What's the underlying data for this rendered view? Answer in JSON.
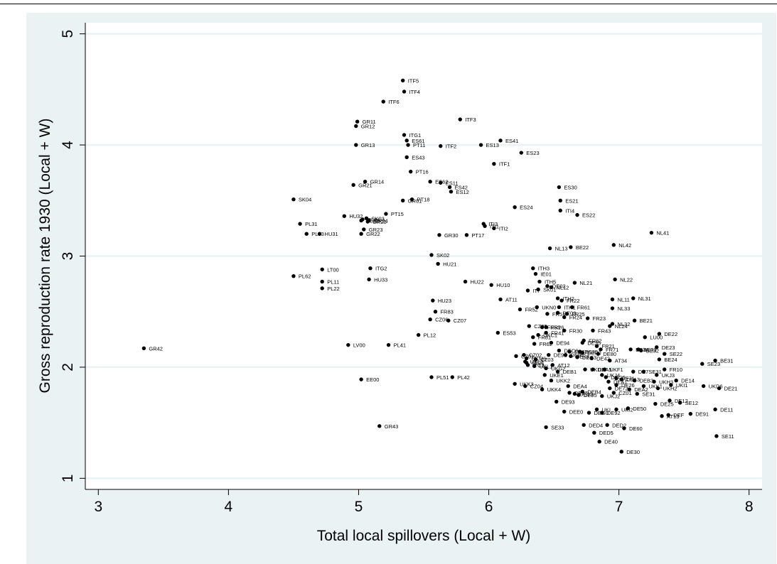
{
  "colors": {
    "background": "#eaf2f3",
    "plot": "#ffffff",
    "grid": "#eaf2f3",
    "marker": "#000000",
    "text": "#000000"
  },
  "chart_data": {
    "type": "scatter",
    "title": "",
    "xlabel": "Total local spillovers (Local + W)",
    "ylabel": "Gross reproduction rate 1930 (Local + W)",
    "xlim": [
      2.9,
      8.1
    ],
    "ylim": [
      0.9,
      5.1
    ],
    "xticks": [
      3,
      4,
      5,
      6,
      7,
      8
    ],
    "yticks": [
      1,
      2,
      3,
      4,
      5
    ],
    "xtick_labels": [
      "3",
      "4",
      "5",
      "6",
      "7",
      "8"
    ],
    "ytick_labels": [
      "1",
      "2",
      "3",
      "4",
      "5"
    ],
    "grid": "horizontal",
    "marker": "filled-circle",
    "points": [
      {
        "label": "GR42",
        "x": 3.35,
        "y": 2.17
      },
      {
        "label": "ITF5",
        "x": 5.34,
        "y": 4.58
      },
      {
        "label": "ITF4",
        "x": 5.35,
        "y": 4.48
      },
      {
        "label": "ITF6",
        "x": 5.19,
        "y": 4.39
      },
      {
        "label": "ITF3",
        "x": 5.78,
        "y": 4.23
      },
      {
        "label": "GR11",
        "x": 4.99,
        "y": 4.21
      },
      {
        "label": "GR12",
        "x": 4.98,
        "y": 4.17
      },
      {
        "label": "ITG1",
        "x": 5.35,
        "y": 4.09
      },
      {
        "label": "ES61",
        "x": 5.37,
        "y": 4.04
      },
      {
        "label": "PT11",
        "x": 5.38,
        "y": 4.0
      },
      {
        "label": "ES41",
        "x": 6.09,
        "y": 4.04
      },
      {
        "label": "GR13",
        "x": 4.98,
        "y": 4.0
      },
      {
        "label": "ITF2",
        "x": 5.63,
        "y": 3.99
      },
      {
        "label": "ES13",
        "x": 5.94,
        "y": 4.0
      },
      {
        "label": "ES23",
        "x": 6.25,
        "y": 3.93
      },
      {
        "label": "ES43",
        "x": 5.37,
        "y": 3.89
      },
      {
        "label": "ITF1",
        "x": 6.04,
        "y": 3.83
      },
      {
        "label": "PT16",
        "x": 5.4,
        "y": 3.76
      },
      {
        "label": "GR14",
        "x": 5.05,
        "y": 3.67
      },
      {
        "label": "ES62",
        "x": 5.55,
        "y": 3.67
      },
      {
        "label": "ES11",
        "x": 5.63,
        "y": 3.66
      },
      {
        "label": "GR21",
        "x": 4.96,
        "y": 3.64
      },
      {
        "label": "ES42",
        "x": 5.7,
        "y": 3.62
      },
      {
        "label": "ES12",
        "x": 5.71,
        "y": 3.58
      },
      {
        "label": "ES30",
        "x": 6.54,
        "y": 3.62
      },
      {
        "label": "SK04",
        "x": 4.5,
        "y": 3.51
      },
      {
        "label": "PT18",
        "x": 5.41,
        "y": 3.51
      },
      {
        "label": "GR01",
        "x": 5.34,
        "y": 3.5
      },
      {
        "label": "ES21",
        "x": 6.55,
        "y": 3.5
      },
      {
        "label": "ES24",
        "x": 6.2,
        "y": 3.44
      },
      {
        "label": "ITI4",
        "x": 6.55,
        "y": 3.41
      },
      {
        "label": "PT15",
        "x": 5.21,
        "y": 3.38
      },
      {
        "label": "ES22",
        "x": 6.68,
        "y": 3.37
      },
      {
        "label": "HU32",
        "x": 4.89,
        "y": 3.36
      },
      {
        "label": "SK03",
        "x": 5.06,
        "y": 3.34
      },
      {
        "label": "PL34",
        "x": 5.03,
        "y": 3.33
      },
      {
        "label": "GR24",
        "x": 5.08,
        "y": 3.32
      },
      {
        "label": "PL32",
        "x": 5.02,
        "y": 3.32
      },
      {
        "label": "GR25",
        "x": 5.07,
        "y": 3.31
      },
      {
        "label": "PL31",
        "x": 4.55,
        "y": 3.29
      },
      {
        "label": "ITI3",
        "x": 5.96,
        "y": 3.29
      },
      {
        "label": "ITI1",
        "x": 5.97,
        "y": 3.27
      },
      {
        "label": "ITI2",
        "x": 6.04,
        "y": 3.25
      },
      {
        "label": "GR23",
        "x": 5.04,
        "y": 3.24
      },
      {
        "label": "NL41",
        "x": 7.25,
        "y": 3.21
      },
      {
        "label": "PL33",
        "x": 4.6,
        "y": 3.2
      },
      {
        "label": "HU31",
        "x": 4.7,
        "y": 3.2
      },
      {
        "label": "GR22",
        "x": 5.02,
        "y": 3.2
      },
      {
        "label": "GR30",
        "x": 5.62,
        "y": 3.19
      },
      {
        "label": "PT17",
        "x": 5.83,
        "y": 3.19
      },
      {
        "label": "NL42",
        "x": 6.96,
        "y": 3.1
      },
      {
        "label": "BE22",
        "x": 6.63,
        "y": 3.08
      },
      {
        "label": "NL13",
        "x": 6.47,
        "y": 3.07
      },
      {
        "label": "SK02",
        "x": 5.56,
        "y": 3.01
      },
      {
        "label": "HU21",
        "x": 5.61,
        "y": 2.93
      },
      {
        "label": "ITG2",
        "x": 5.09,
        "y": 2.89
      },
      {
        "label": "LT00",
        "x": 4.72,
        "y": 2.88
      },
      {
        "label": "ITH3",
        "x": 6.34,
        "y": 2.89
      },
      {
        "label": "PL62",
        "x": 4.5,
        "y": 2.82
      },
      {
        "label": "IE01",
        "x": 6.36,
        "y": 2.84
      },
      {
        "label": "HU33",
        "x": 5.08,
        "y": 2.79
      },
      {
        "label": "NL22",
        "x": 6.97,
        "y": 2.79
      },
      {
        "label": "PL11",
        "x": 4.72,
        "y": 2.77
      },
      {
        "label": "HU22",
        "x": 5.82,
        "y": 2.77
      },
      {
        "label": "ITH5",
        "x": 6.39,
        "y": 2.77
      },
      {
        "label": "NL21",
        "x": 6.66,
        "y": 2.76
      },
      {
        "label": "HU10",
        "x": 6.02,
        "y": 2.74
      },
      {
        "label": "DE02",
        "x": 6.45,
        "y": 2.73
      },
      {
        "label": "NL12",
        "x": 6.48,
        "y": 2.72
      },
      {
        "label": "PL22",
        "x": 4.72,
        "y": 2.71
      },
      {
        "label": "ITI",
        "x": 6.3,
        "y": 2.69
      },
      {
        "label": "SK01",
        "x": 6.38,
        "y": 2.7
      },
      {
        "label": "NL31",
        "x": 7.11,
        "y": 2.62
      },
      {
        "label": "NL11",
        "x": 6.95,
        "y": 2.61
      },
      {
        "label": "AT11",
        "x": 6.09,
        "y": 2.61
      },
      {
        "label": "HU23",
        "x": 5.57,
        "y": 2.6
      },
      {
        "label": "ITH2",
        "x": 6.53,
        "y": 2.62
      },
      {
        "label": "FR22",
        "x": 6.56,
        "y": 2.6
      },
      {
        "label": "NL33",
        "x": 6.95,
        "y": 2.53
      },
      {
        "label": "FR52",
        "x": 6.24,
        "y": 2.52
      },
      {
        "label": "UKN0",
        "x": 6.37,
        "y": 2.54
      },
      {
        "label": "ITH1",
        "x": 6.54,
        "y": 2.54
      },
      {
        "label": "FR61",
        "x": 6.64,
        "y": 2.54
      },
      {
        "label": "FR83",
        "x": 5.59,
        "y": 2.5
      },
      {
        "label": "FR51",
        "x": 6.45,
        "y": 2.48
      },
      {
        "label": "DE03",
        "x": 6.53,
        "y": 2.49
      },
      {
        "label": "FR25",
        "x": 6.6,
        "y": 2.48
      },
      {
        "label": "FR24",
        "x": 6.58,
        "y": 2.45
      },
      {
        "label": "FR23",
        "x": 6.76,
        "y": 2.44
      },
      {
        "label": "BE21",
        "x": 7.12,
        "y": 2.42
      },
      {
        "label": "CZ06",
        "x": 5.55,
        "y": 2.43
      },
      {
        "label": "CZ07",
        "x": 5.69,
        "y": 2.42
      },
      {
        "label": "NL32",
        "x": 6.95,
        "y": 2.39
      },
      {
        "label": "NL24",
        "x": 6.93,
        "y": 2.37
      },
      {
        "label": "CZ05",
        "x": 6.31,
        "y": 2.37
      },
      {
        "label": "FR53",
        "x": 6.41,
        "y": 2.36
      },
      {
        "label": "FR26",
        "x": 6.44,
        "y": 2.36
      },
      {
        "label": "FR30",
        "x": 6.58,
        "y": 2.33
      },
      {
        "label": "FR43",
        "x": 6.8,
        "y": 2.33
      },
      {
        "label": "ES53",
        "x": 6.07,
        "y": 2.31
      },
      {
        "label": "FR41",
        "x": 6.44,
        "y": 2.31
      },
      {
        "label": "DE22",
        "x": 7.31,
        "y": 2.3
      },
      {
        "label": "PL12",
        "x": 5.46,
        "y": 2.29
      },
      {
        "label": "UKC1",
        "x": 6.38,
        "y": 2.29
      },
      {
        "label": "FR81",
        "x": 6.34,
        "y": 2.27
      },
      {
        "label": "LU00",
        "x": 7.2,
        "y": 2.27
      },
      {
        "label": "FR82",
        "x": 6.73,
        "y": 2.24
      },
      {
        "label": "DE35",
        "x": 6.72,
        "y": 2.22
      },
      {
        "label": "DE94",
        "x": 6.48,
        "y": 2.22
      },
      {
        "label": "FR62",
        "x": 6.35,
        "y": 2.21
      },
      {
        "label": "LV00",
        "x": 4.92,
        "y": 2.2
      },
      {
        "label": "PL41",
        "x": 5.23,
        "y": 2.2
      },
      {
        "label": "FR21",
        "x": 6.83,
        "y": 2.19
      },
      {
        "label": "DE23",
        "x": 7.29,
        "y": 2.18
      },
      {
        "label": "FR71",
        "x": 6.86,
        "y": 2.16
      },
      {
        "label": "BE34",
        "x": 7.09,
        "y": 2.16
      },
      {
        "label": "BE33",
        "x": 7.15,
        "y": 2.16
      },
      {
        "label": "DEC0",
        "x": 6.54,
        "y": 2.15
      },
      {
        "label": "FR72",
        "x": 6.62,
        "y": 2.14
      },
      {
        "label": "BE35",
        "x": 6.7,
        "y": 2.14
      },
      {
        "label": "BE32",
        "x": 7.17,
        "y": 2.15
      },
      {
        "label": "DEF0",
        "x": 6.72,
        "y": 2.13
      },
      {
        "label": "DE80",
        "x": 6.84,
        "y": 2.12
      },
      {
        "label": "SE22",
        "x": 7.35,
        "y": 2.12
      },
      {
        "label": "CZ02",
        "x": 6.27,
        "y": 2.11
      },
      {
        "label": "DE91",
        "x": 6.46,
        "y": 2.11
      },
      {
        "label": "DEB2",
        "x": 6.59,
        "y": 2.11
      },
      {
        "label": "DE73",
        "x": 6.63,
        "y": 2.1
      },
      {
        "label": "CZ01",
        "x": 6.21,
        "y": 2.1
      },
      {
        "label": "UKM6",
        "x": 6.29,
        "y": 2.08
      },
      {
        "label": "DEC3",
        "x": 6.68,
        "y": 2.09
      },
      {
        "label": "DE42",
        "x": 6.79,
        "y": 2.08
      },
      {
        "label": "CZ03",
        "x": 6.36,
        "y": 2.07
      },
      {
        "label": "BE24",
        "x": 7.31,
        "y": 2.07
      },
      {
        "label": "UKL2",
        "x": 6.28,
        "y": 2.05
      },
      {
        "label": "SE21",
        "x": 6.29,
        "y": 2.04
      },
      {
        "label": "AT34",
        "x": 6.93,
        "y": 2.06
      },
      {
        "label": "BE31",
        "x": 7.74,
        "y": 2.06
      },
      {
        "label": "ITC2",
        "x": 6.3,
        "y": 2.02
      },
      {
        "label": "SE23",
        "x": 7.64,
        "y": 2.03
      },
      {
        "label": "AT12",
        "x": 6.49,
        "y": 2.02
      },
      {
        "label": "UKL1",
        "x": 6.35,
        "y": 2.01
      },
      {
        "label": "UKG2",
        "x": 6.44,
        "y": 1.99
      },
      {
        "label": "FR10",
        "x": 7.35,
        "y": 1.98
      },
      {
        "label": "UKD2",
        "x": 6.74,
        "y": 1.98
      },
      {
        "label": "UKF1",
        "x": 6.89,
        "y": 1.98
      },
      {
        "label": "DEA5",
        "x": 6.8,
        "y": 1.98
      },
      {
        "label": "UKE1",
        "x": 6.43,
        "y": 1.93
      },
      {
        "label": "SE31",
        "x": 7.19,
        "y": 1.96
      },
      {
        "label": "DEB1",
        "x": 6.53,
        "y": 1.96
      },
      {
        "label": "DE7",
        "x": 7.11,
        "y": 1.96
      },
      {
        "label": "UKJ3",
        "x": 7.29,
        "y": 1.93
      },
      {
        "label": "UKJ4",
        "x": 6.87,
        "y": 1.93
      },
      {
        "label": "DEG0",
        "x": 6.9,
        "y": 1.91
      },
      {
        "label": "DE71",
        "x": 6.98,
        "y": 1.9
      },
      {
        "label": "DE13",
        "x": 7.02,
        "y": 1.89
      },
      {
        "label": "DEB3",
        "x": 7.12,
        "y": 1.88
      },
      {
        "label": "DE14",
        "x": 7.44,
        "y": 1.88
      },
      {
        "label": "UKK2",
        "x": 6.48,
        "y": 1.88
      },
      {
        "label": "DEA1",
        "x": 6.92,
        "y": 1.87
      },
      {
        "label": "UKH3",
        "x": 7.27,
        "y": 1.87
      },
      {
        "label": "UKD6",
        "x": 7.65,
        "y": 1.83
      },
      {
        "label": "UKK3",
        "x": 6.2,
        "y": 1.85
      },
      {
        "label": "UKK1",
        "x": 7.19,
        "y": 1.83
      },
      {
        "label": "UKI1",
        "x": 7.4,
        "y": 1.84
      },
      {
        "label": "DE26",
        "x": 6.98,
        "y": 1.84
      },
      {
        "label": "DEA4",
        "x": 6.61,
        "y": 1.83
      },
      {
        "label": "DE21",
        "x": 7.77,
        "y": 1.81
      },
      {
        "label": "CZ04",
        "x": 6.28,
        "y": 1.83
      },
      {
        "label": "UKH2",
        "x": 7.3,
        "y": 1.81
      },
      {
        "label": "DE72",
        "x": 6.93,
        "y": 1.81
      },
      {
        "label": "DEA2",
        "x": 7.08,
        "y": 1.8
      },
      {
        "label": "UKK4",
        "x": 6.41,
        "y": 1.8
      },
      {
        "label": "DEB4",
        "x": 6.72,
        "y": 1.78
      },
      {
        "label": "DE27",
        "x": 6.62,
        "y": 1.77
      },
      {
        "label": "CZ01",
        "x": 6.96,
        "y": 1.77
      },
      {
        "label": "SE31",
        "x": 7.14,
        "y": 1.76
      },
      {
        "label": "DE93",
        "x": 6.66,
        "y": 1.76
      },
      {
        "label": "DE95",
        "x": 6.69,
        "y": 1.75
      },
      {
        "label": "UKJ2",
        "x": 6.87,
        "y": 1.74
      },
      {
        "label": "DE12",
        "x": 7.39,
        "y": 1.7
      },
      {
        "label": "DE93",
        "x": 6.52,
        "y": 1.69
      },
      {
        "label": "SE12",
        "x": 7.47,
        "y": 1.68
      },
      {
        "label": "DE25",
        "x": 7.28,
        "y": 1.67
      },
      {
        "label": "DE50",
        "x": 7.07,
        "y": 1.63
      },
      {
        "label": "UKI2",
        "x": 6.98,
        "y": 1.62
      },
      {
        "label": "DE11",
        "x": 7.74,
        "y": 1.62
      },
      {
        "label": "UKI",
        "x": 6.83,
        "y": 1.62
      },
      {
        "label": "DEE0",
        "x": 6.58,
        "y": 1.6
      },
      {
        "label": "DEG0",
        "x": 6.77,
        "y": 1.59
      },
      {
        "label": "DE92",
        "x": 6.87,
        "y": 1.59
      },
      {
        "label": "DE91",
        "x": 7.55,
        "y": 1.58
      },
      {
        "label": "DEF",
        "x": 7.38,
        "y": 1.57
      },
      {
        "label": "AT13",
        "x": 7.33,
        "y": 1.56
      },
      {
        "label": "SE33",
        "x": 6.44,
        "y": 1.46
      },
      {
        "label": "DED4",
        "x": 6.73,
        "y": 1.48
      },
      {
        "label": "DED2",
        "x": 6.91,
        "y": 1.48
      },
      {
        "label": "DE60",
        "x": 7.04,
        "y": 1.45
      },
      {
        "label": "DED5",
        "x": 6.81,
        "y": 1.41
      },
      {
        "label": "SE11",
        "x": 7.75,
        "y": 1.38
      },
      {
        "label": "DE40",
        "x": 6.85,
        "y": 1.33
      },
      {
        "label": "DE30",
        "x": 7.02,
        "y": 1.24
      },
      {
        "label": "PL51",
        "x": 5.56,
        "y": 1.91
      },
      {
        "label": "PL42",
        "x": 5.72,
        "y": 1.91
      },
      {
        "label": "EE00",
        "x": 5.02,
        "y": 1.89
      },
      {
        "label": "GR43",
        "x": 5.16,
        "y": 1.47
      }
    ]
  }
}
